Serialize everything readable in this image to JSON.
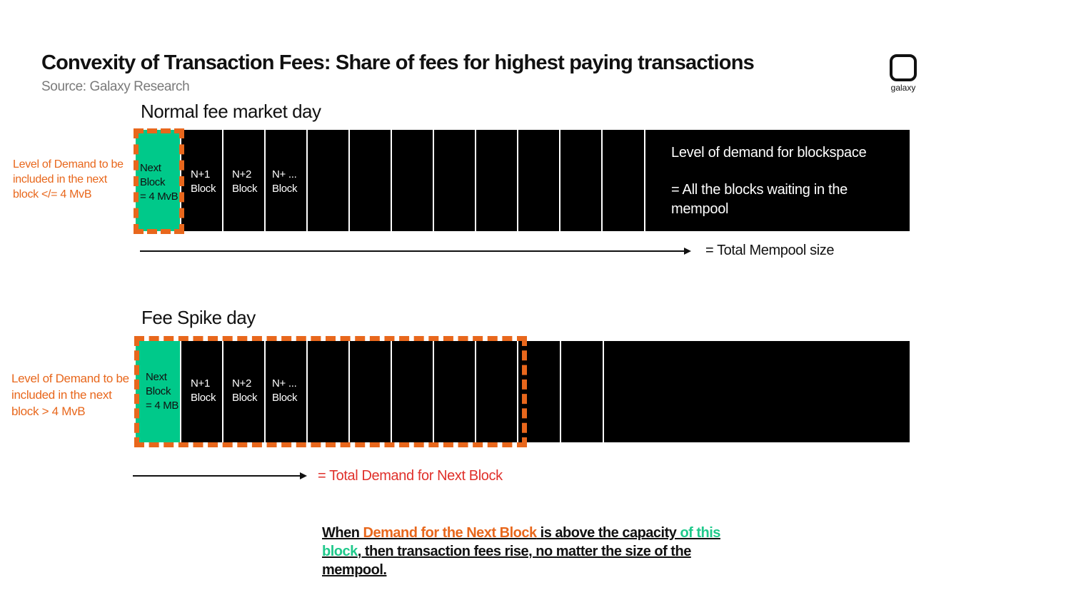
{
  "header": {
    "title": "Convexity of Transaction Fees: Share of fees for highest paying transactions",
    "source": "Source: Galaxy Research",
    "logo_text": "galaxy"
  },
  "normal": {
    "section_title": "Normal fee market day",
    "side_label": "Level of Demand to be included in the next block </= 4 MvB",
    "next_block": "Next\nBlock\n= 4 MvB",
    "n1": "N+1\nBlock",
    "n2": "N+2\nBlock",
    "nx": "N+ ...\nBlock",
    "demand_title": "Level of demand for blockspace",
    "demand_desc": "= All the blocks waiting in the mempool",
    "arrow_label": "= Total Mempool size"
  },
  "spike": {
    "section_title": "Fee Spike day",
    "side_label": "Level of Demand to be included in the next block > 4 MvB",
    "next_block": "Next\nBlock\n= 4 MB",
    "n1": "N+1\nBlock",
    "n2": "N+2\nBlock",
    "nx": "N+ ...\nBlock",
    "arrow_label": "= Total Demand for Next Block"
  },
  "conclusion": {
    "part1": "When ",
    "part2": "Demand for the Next Block",
    "part3": " is above the capacity ",
    "part4": "of this block",
    "part5": ", then transaction fees rise, no matter the size of the mempool."
  },
  "colors": {
    "accent_orange": "#e8671c",
    "next_block_green": "#00c98a",
    "arrow_label_red": "#e0312b"
  }
}
